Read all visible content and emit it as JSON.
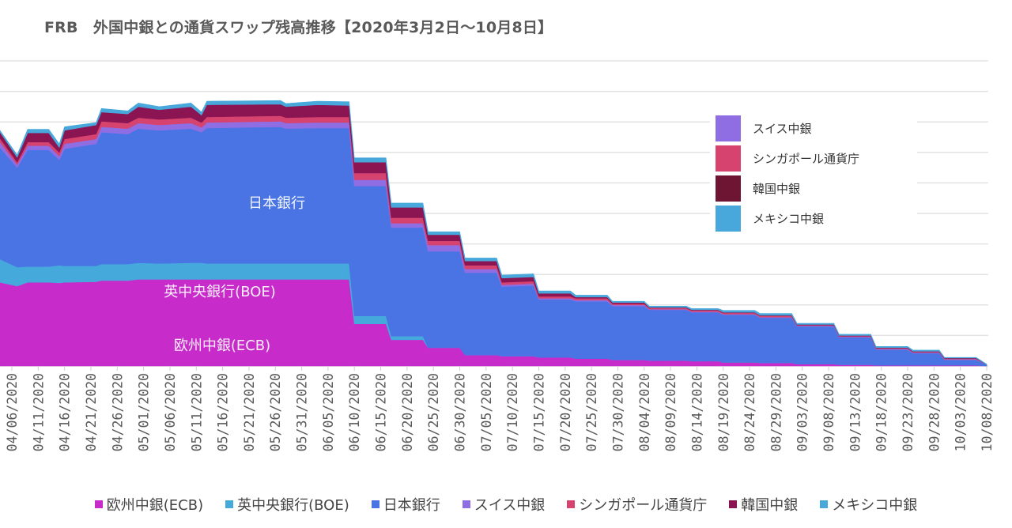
{
  "chart_data": {
    "type": "area",
    "stacked": true,
    "title": "FRB　外国中銀との通貨スワップ残高推移【2020年3月2日～10月8日】",
    "xlabel": "",
    "ylabel": "",
    "ylim": [
      0,
      500
    ],
    "grid": true,
    "legend_placement": "bottom",
    "x_tick_labels": [
      "04/06/2020",
      "04/11/2020",
      "04/16/2020",
      "04/21/2020",
      "04/26/2020",
      "05/01/2020",
      "05/06/2020",
      "05/11/2020",
      "05/16/2020",
      "05/21/2020",
      "05/26/2020",
      "05/31/2020",
      "06/05/2020",
      "06/10/2020",
      "06/15/2020",
      "06/20/2020",
      "06/25/2020",
      "06/30/2020",
      "07/05/2020",
      "07/10/2020",
      "07/15/2020",
      "07/20/2020",
      "07/25/2020",
      "07/30/2020",
      "08/04/2020",
      "08/09/2020",
      "08/14/2020",
      "08/19/2020",
      "08/24/2020",
      "08/29/2020",
      "09/03/2020",
      "09/08/2020",
      "09/13/2020",
      "09/18/2020",
      "09/23/2020",
      "09/28/2020",
      "10/03/2020",
      "10/08/2020"
    ],
    "x": [
      "2020-04-03",
      "2020-04-07",
      "2020-04-09",
      "2020-04-13",
      "2020-04-15",
      "2020-04-16",
      "2020-04-22",
      "2020-04-23",
      "2020-04-28",
      "2020-04-30",
      "2020-05-04",
      "2020-05-10",
      "2020-05-12",
      "2020-05-13",
      "2020-05-27",
      "2020-05-28",
      "2020-06-03",
      "2020-06-09",
      "2020-06-10",
      "2020-06-16",
      "2020-06-17",
      "2020-06-23",
      "2020-06-24",
      "2020-06-30",
      "2020-07-01",
      "2020-07-07",
      "2020-07-08",
      "2020-07-14",
      "2020-07-15",
      "2020-07-21",
      "2020-07-22",
      "2020-07-28",
      "2020-07-29",
      "2020-08-04",
      "2020-08-05",
      "2020-08-12",
      "2020-08-13",
      "2020-08-18",
      "2020-08-19",
      "2020-08-25",
      "2020-08-26",
      "2020-09-01",
      "2020-09-02",
      "2020-09-09",
      "2020-09-10",
      "2020-09-16",
      "2020-09-17",
      "2020-09-23",
      "2020-09-24",
      "2020-09-29",
      "2020-09-30",
      "2020-10-06",
      "2020-10-08"
    ],
    "series": [
      {
        "name": "欧州中銀(ECB)",
        "color": "#c72ccb",
        "values": [
          137,
          131,
          137,
          137,
          136,
          137,
          138,
          140,
          140,
          142,
          142,
          142,
          142,
          142,
          142,
          142,
          142,
          142,
          69,
          69,
          43,
          43,
          30,
          30,
          18,
          18,
          16,
          16,
          14,
          14,
          12,
          12,
          10,
          10,
          9,
          9,
          8,
          8,
          6,
          6,
          5,
          5,
          3,
          3,
          2,
          2,
          1,
          1,
          1,
          1,
          1,
          1,
          0
        ]
      },
      {
        "name": "英中央銀行(BOE)",
        "color": "#45a9dc",
        "values": [
          38,
          31,
          26,
          26,
          29,
          27,
          26,
          27,
          27,
          27,
          26,
          27,
          27,
          26,
          26,
          26,
          26,
          26,
          13,
          13,
          6,
          6,
          0,
          0,
          0,
          0,
          0,
          0,
          0,
          0,
          0,
          0,
          0,
          0,
          0,
          0,
          0,
          0,
          0,
          0,
          0,
          0,
          0,
          0,
          0,
          0,
          0,
          0,
          0,
          0,
          0,
          0,
          0
        ]
      },
      {
        "name": "日本銀行",
        "color": "#4a74e4",
        "values": [
          183,
          163,
          191,
          191,
          173,
          192,
          200,
          216,
          213,
          220,
          218,
          220,
          214,
          222,
          224,
          221,
          222,
          222,
          213,
          213,
          178,
          178,
          158,
          158,
          135,
          135,
          114,
          116,
          95,
          95,
          94,
          94,
          88,
          88,
          83,
          83,
          80,
          80,
          78,
          78,
          74,
          74,
          62,
          62,
          45,
          45,
          26,
          26,
          20,
          20,
          9,
          9,
          2
        ]
      },
      {
        "name": "スイス中銀",
        "color": "#8f6ee3",
        "values": [
          9,
          5,
          7,
          7,
          6,
          8,
          8,
          9,
          9,
          9,
          9,
          9,
          8,
          9,
          9,
          9,
          9,
          9,
          10,
          10,
          7,
          7,
          10,
          10,
          6,
          6,
          3,
          3,
          2,
          2,
          2,
          2,
          2,
          2,
          1,
          1,
          1,
          1,
          1,
          1,
          1,
          1,
          1,
          1,
          1,
          1,
          1,
          1,
          1,
          1,
          1,
          1,
          0
        ]
      },
      {
        "name": "シンガポール通貨庁",
        "color": "#d6436f",
        "values": [
          6,
          4,
          6,
          6,
          6,
          8,
          8,
          9,
          9,
          9,
          9,
          9,
          8,
          9,
          9,
          9,
          9,
          9,
          11,
          11,
          9,
          9,
          7,
          7,
          6,
          6,
          4,
          4,
          3,
          3,
          3,
          3,
          2,
          2,
          2,
          2,
          2,
          2,
          2,
          2,
          2,
          2,
          1,
          1,
          1,
          1,
          1,
          1,
          1,
          1,
          1,
          1,
          0
        ]
      },
      {
        "name": "韓国中銀",
        "color": "#8b1453",
        "values": [
          10,
          8,
          15,
          15,
          8,
          14,
          15,
          15,
          15,
          18,
          16,
          18,
          12,
          20,
          19,
          18,
          20,
          19,
          18,
          18,
          17,
          17,
          10,
          10,
          7,
          7,
          7,
          7,
          5,
          5,
          2,
          2,
          2,
          2,
          1,
          1,
          1,
          1,
          1,
          1,
          1,
          1,
          1,
          1,
          1,
          1,
          1,
          1,
          1,
          1,
          1,
          1,
          0
        ]
      },
      {
        "name": "メキシコ中銀",
        "color": "#48a8dc",
        "values": [
          3,
          4,
          6,
          6,
          6,
          6,
          4,
          6,
          5,
          6,
          5,
          6,
          5,
          6,
          6,
          5,
          6,
          6,
          7,
          7,
          7,
          7,
          5,
          5,
          5,
          5,
          5,
          5,
          4,
          4,
          3,
          3,
          2,
          2,
          2,
          2,
          2,
          2,
          3,
          3,
          3,
          3,
          2,
          2,
          2,
          2,
          2,
          2,
          2,
          2,
          1,
          1,
          1
        ]
      }
    ],
    "area_labels": {
      "japan": "日本銀行",
      "boe": "英中央銀行(BOE)",
      "ecb": "欧州中銀(ECB)"
    },
    "inset_legend": [
      {
        "name": "スイス中銀",
        "color": "#8f6ee3"
      },
      {
        "name": "シンガポール通貨庁",
        "color": "#d6436f"
      },
      {
        "name": "韓国中銀",
        "color": "#6e1533"
      },
      {
        "name": "メキシコ中銀",
        "color": "#48a8dc"
      }
    ],
    "bottom_legend": [
      {
        "name": "欧州中銀(ECB)",
        "color": "#c72ccb"
      },
      {
        "name": "英中央銀行(BOE)",
        "color": "#45a9dc"
      },
      {
        "name": "日本銀行",
        "color": "#4a74e4"
      },
      {
        "name": "スイス中銀",
        "color": "#8f6ee3"
      },
      {
        "name": "シンガポール通貨庁",
        "color": "#d6436f"
      },
      {
        "name": "韓国中銀",
        "color": "#8b1453"
      },
      {
        "name": "メキシコ中銀",
        "color": "#48a8dc"
      }
    ]
  }
}
